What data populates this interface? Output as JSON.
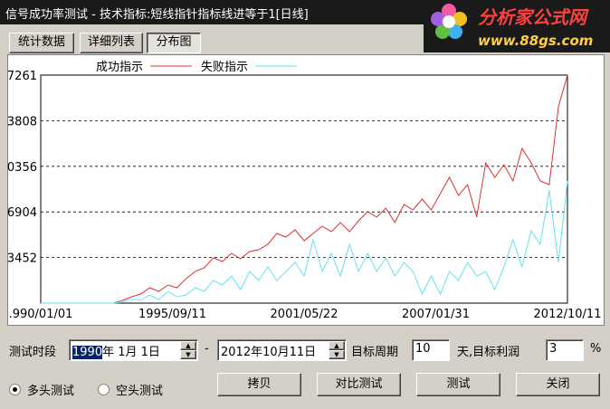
{
  "window": {
    "title": "信号成功率测试 - 技术指标:短线指针指标线进等于1[日线]",
    "logo": {
      "name": "分析家公式网",
      "url": "www.88gs.com"
    }
  },
  "tabs": [
    "统计数据",
    "详细列表",
    "分布图"
  ],
  "chart_data": {
    "type": "line",
    "series": [
      {
        "name": "成功指示",
        "color": "#e03030",
        "values": [
          0,
          0,
          0,
          0,
          0,
          0,
          0,
          0,
          0,
          205,
          480,
          685,
          1165,
          890,
          1370,
          1165,
          1850,
          2400,
          2670,
          3425,
          3150,
          3770,
          3355,
          3905,
          4040,
          4450,
          5275,
          5000,
          5550,
          4725,
          5275,
          5820,
          5410,
          6100,
          5410,
          6235,
          6920,
          6510,
          7190,
          6100,
          7470,
          7055,
          7880,
          7055,
          8290,
          9520,
          8150,
          8975,
          6510,
          10620,
          9520,
          10480,
          9250,
          11715,
          10620,
          9250,
          8975,
          14865,
          17260
        ]
      },
      {
        "name": "失败指示",
        "color": "#66e0f0",
        "values": [
          0,
          0,
          0,
          0,
          0,
          0,
          0,
          0,
          0,
          70,
          340,
          205,
          615,
          275,
          890,
          480,
          615,
          1165,
          890,
          1710,
          1370,
          2055,
          1030,
          2400,
          1710,
          2740,
          1710,
          2400,
          3080,
          2055,
          4795,
          2400,
          3770,
          2055,
          4450,
          2400,
          3770,
          2400,
          3425,
          2055,
          3080,
          2400,
          685,
          2055,
          685,
          2400,
          1710,
          3080,
          2055,
          2400,
          1030,
          2740,
          4795,
          2740,
          5480,
          4450,
          8560,
          3080,
          9250
        ]
      }
    ],
    "ylim": [
      0,
      17261
    ],
    "yticks": [
      {
        "value": 17261,
        "label": "7261"
      },
      {
        "value": 13808,
        "label": "3808"
      },
      {
        "value": 10356,
        "label": "0356"
      },
      6904,
      3452
    ],
    "xticks": [
      {
        "value": "1990/01/01",
        "label": ".990/01/01"
      },
      "1995/09/11",
      "2001/05/22",
      "2007/01/31",
      "2012/10/11"
    ],
    "grid": true
  },
  "controls": {
    "period_label": "测试时段",
    "start_date": {
      "year": "1990",
      "rest": "年 1月 1日"
    },
    "dash": "-",
    "end_date": "2012年10月11日",
    "cycle_label": "目标周期",
    "cycle_value": "10",
    "profit_label": "天,目标利润",
    "profit_value": "3",
    "percent": "%",
    "radios": [
      "多头测试",
      "空头测试"
    ],
    "buttons": [
      "拷贝",
      "对比测试",
      "测试",
      "关闭"
    ]
  }
}
